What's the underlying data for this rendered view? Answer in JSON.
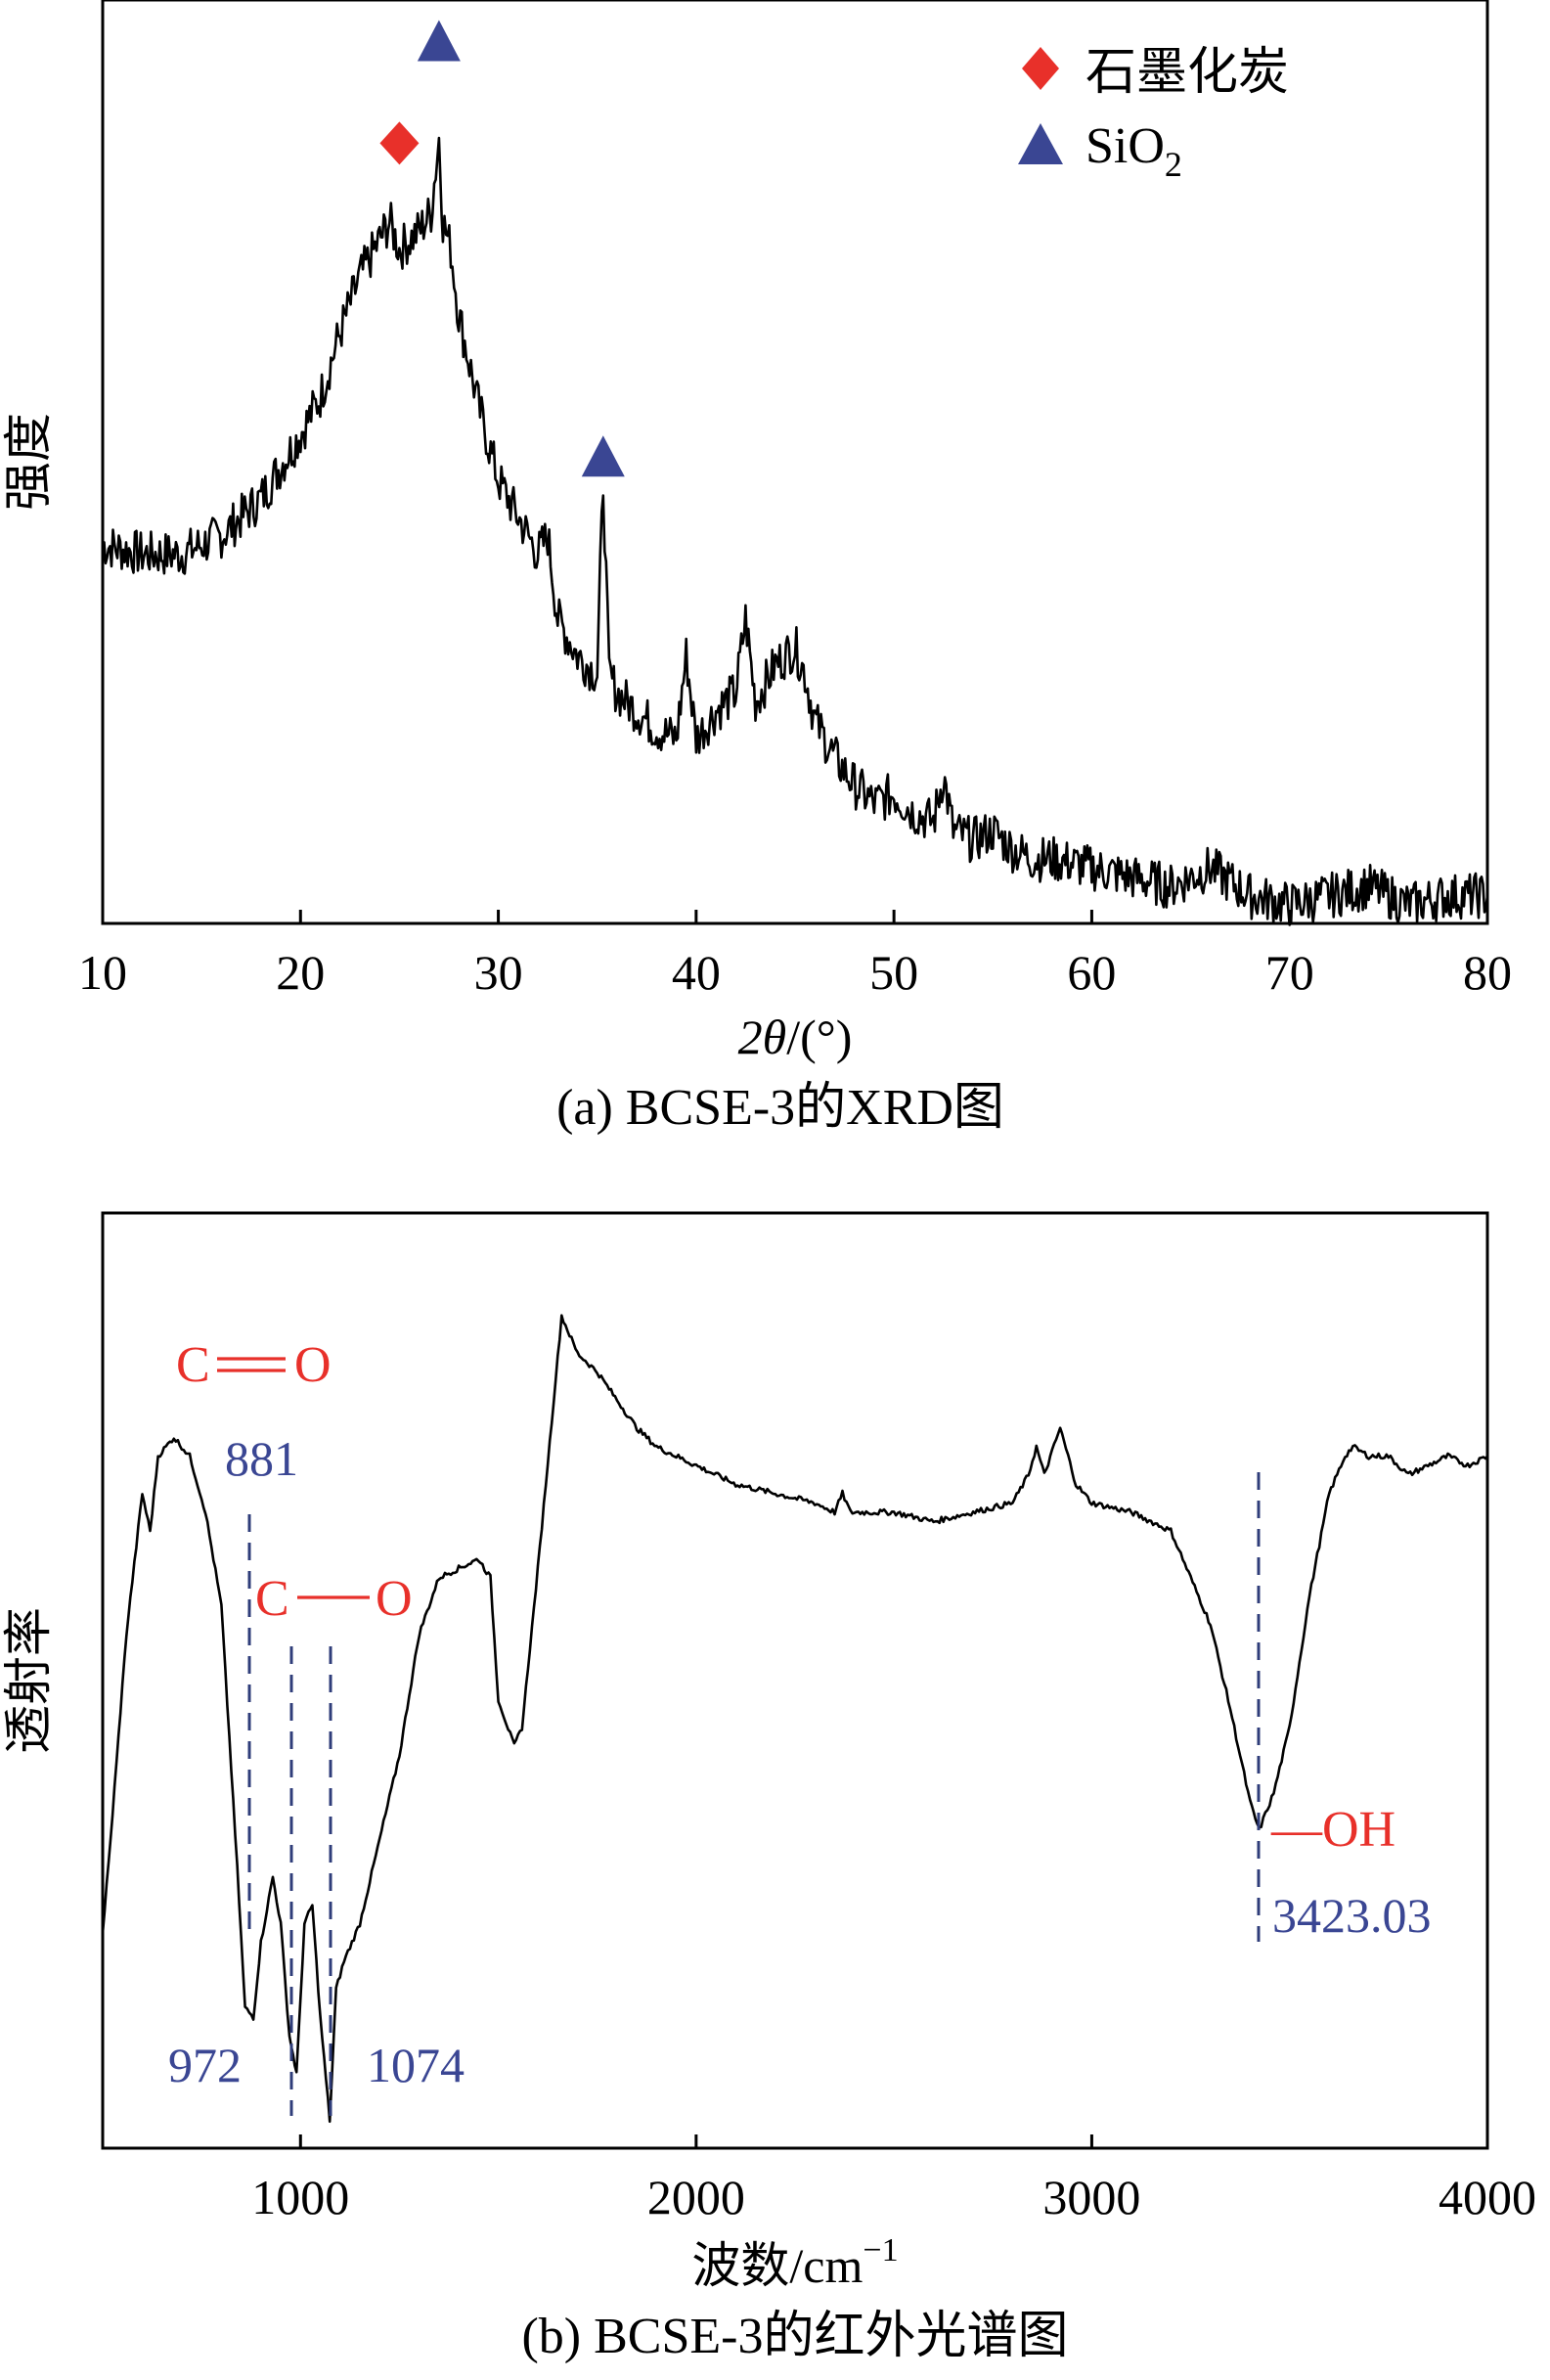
{
  "colors": {
    "line": "#000000",
    "red": "#e8302a",
    "blue": "#3a4693",
    "navy_dash": "#2f3d7a"
  },
  "chart_data": [
    {
      "type": "line",
      "panel": "a",
      "caption": "(a) BCSE-3的XRD图",
      "xlabel_var": "2θ",
      "xlabel_unit": "/(°)",
      "ylabel": "强度",
      "xlim": [
        10,
        80
      ],
      "ylim": [
        0,
        1
      ],
      "xticks": [
        10,
        20,
        30,
        40,
        50,
        60,
        70,
        80
      ],
      "yticks": [],
      "legend": [
        {
          "marker": "diamond",
          "color": "#e8302a",
          "label": "石墨化炭"
        },
        {
          "marker": "triangle",
          "color": "#3a4693",
          "label_main": "SiO",
          "label_sub": "2"
        }
      ],
      "markers": [
        {
          "type": "diamond",
          "x": 25.0,
          "y": 0.845
        },
        {
          "type": "triangle",
          "x": 27.0,
          "y": 0.955
        },
        {
          "type": "triangle",
          "x": 35.3,
          "y": 0.505
        }
      ],
      "series": [
        {
          "name": "BCSE-3 XRD",
          "x": [
            10,
            12,
            14,
            16,
            18,
            20,
            21,
            22,
            23,
            24,
            24.5,
            25,
            26,
            26.6,
            27.0,
            27.2,
            27.6,
            28,
            29,
            30,
            31,
            32,
            32.5,
            33,
            34,
            35,
            35.3,
            35.6,
            36,
            37,
            38,
            39,
            39.5,
            40,
            41,
            42,
            42.5,
            43,
            44,
            45,
            45.5,
            46,
            47,
            48,
            49,
            50,
            51,
            52,
            52.5,
            53,
            54,
            55,
            56,
            57,
            58,
            60,
            62,
            64,
            66,
            68,
            70,
            72,
            74,
            76,
            78,
            80
          ],
          "y": [
            0.41,
            0.4,
            0.4,
            0.42,
            0.46,
            0.53,
            0.57,
            0.64,
            0.7,
            0.74,
            0.76,
            0.73,
            0.75,
            0.77,
            0.85,
            0.76,
            0.73,
            0.66,
            0.56,
            0.48,
            0.44,
            0.4,
            0.42,
            0.33,
            0.29,
            0.27,
            0.48,
            0.27,
            0.25,
            0.23,
            0.21,
            0.2,
            0.29,
            0.2,
            0.23,
            0.25,
            0.33,
            0.24,
            0.28,
            0.3,
            0.27,
            0.22,
            0.18,
            0.15,
            0.13,
            0.14,
            0.12,
            0.11,
            0.16,
            0.1,
            0.09,
            0.1,
            0.08,
            0.07,
            0.07,
            0.06,
            0.05,
            0.04,
            0.06,
            0.03,
            0.02,
            0.03,
            0.04,
            0.02,
            0.03,
            0.03
          ]
        }
      ]
    },
    {
      "type": "line",
      "panel": "b",
      "caption": "(b) BCSE-3的红外光谱图",
      "xlabel_main": "波数/cm",
      "xlabel_sup": "−1",
      "ylabel": "透射率",
      "xlim": [
        500,
        4000
      ],
      "ylim": [
        0,
        1
      ],
      "xticks": [
        1000,
        2000,
        3000,
        4000
      ],
      "yticks": [],
      "annotations": [
        {
          "group": "C=O",
          "label_left": "C",
          "label_right": "O",
          "bond": "double",
          "wavenumber": "881",
          "x": 881
        },
        {
          "group": "C-O",
          "label_left": "C",
          "label_right": "O",
          "bond": "single",
          "wavenumbers": [
            "972",
            "1074"
          ],
          "x": [
            990,
            1085
          ]
        },
        {
          "group": "OH",
          "label": "—OH",
          "wavenumber": "3423.03",
          "x": 3423.03
        }
      ],
      "series": [
        {
          "name": "BCSE-3 FTIR",
          "x": [
            500,
            520,
            560,
            600,
            620,
            640,
            680,
            720,
            760,
            800,
            840,
            860,
            881,
            900,
            930,
            950,
            972,
            990,
            1010,
            1030,
            1050,
            1074,
            1090,
            1110,
            1150,
            1200,
            1250,
            1300,
            1350,
            1400,
            1450,
            1480,
            1500,
            1540,
            1560,
            1600,
            1640,
            1660,
            1680,
            1700,
            1750,
            1800,
            1850,
            1900,
            2000,
            2100,
            2200,
            2300,
            2350,
            2370,
            2390,
            2500,
            2600,
            2700,
            2800,
            2840,
            2860,
            2880,
            2920,
            2940,
            2960,
            2980,
            3000,
            3100,
            3200,
            3300,
            3350,
            3400,
            3423,
            3460,
            3500,
            3550,
            3600,
            3640,
            3660,
            3700,
            3750,
            3800,
            3850,
            3900,
            3950,
            4000
          ],
          "y": [
            0.23,
            0.33,
            0.55,
            0.7,
            0.66,
            0.74,
            0.76,
            0.74,
            0.68,
            0.58,
            0.3,
            0.15,
            0.14,
            0.22,
            0.29,
            0.24,
            0.12,
            0.08,
            0.24,
            0.26,
            0.14,
            0.03,
            0.17,
            0.2,
            0.24,
            0.33,
            0.42,
            0.55,
            0.61,
            0.62,
            0.63,
            0.61,
            0.48,
            0.43,
            0.45,
            0.62,
            0.8,
            0.89,
            0.87,
            0.85,
            0.83,
            0.8,
            0.77,
            0.75,
            0.73,
            0.71,
            0.7,
            0.69,
            0.68,
            0.7,
            0.68,
            0.68,
            0.67,
            0.68,
            0.69,
            0.72,
            0.75,
            0.72,
            0.77,
            0.74,
            0.71,
            0.7,
            0.69,
            0.68,
            0.66,
            0.56,
            0.47,
            0.37,
            0.34,
            0.38,
            0.45,
            0.59,
            0.7,
            0.74,
            0.75,
            0.74,
            0.74,
            0.72,
            0.73,
            0.74,
            0.73,
            0.74
          ]
        }
      ]
    }
  ]
}
